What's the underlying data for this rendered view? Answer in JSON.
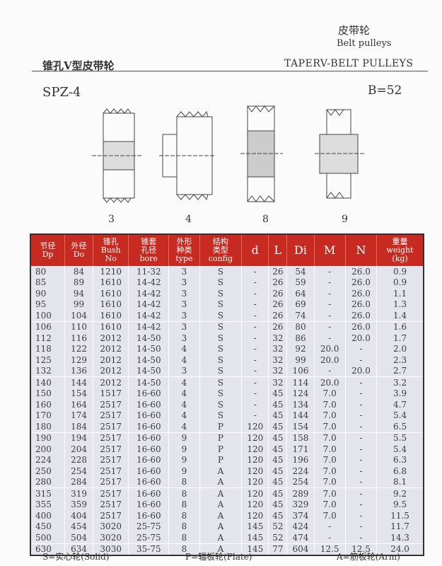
{
  "header": {
    "title_cn": "皮带轮",
    "title_en": "Belt pulleys",
    "section_cn": "锥孔V型皮带轮",
    "section_en": "TAPERV-BELT PULLEYS",
    "model": "SPZ-4",
    "b_value": "B=52"
  },
  "drawings": [
    {
      "label": "3"
    },
    {
      "label": "4"
    },
    {
      "label": "8"
    },
    {
      "label": "9"
    }
  ],
  "table": {
    "headers": [
      [
        "节径",
        "Dp"
      ],
      [
        "外径",
        "Do"
      ],
      [
        "锥孔",
        "Bush",
        "No"
      ],
      [
        "锥套",
        "孔径",
        "bore"
      ],
      [
        "外形",
        "种类",
        "type"
      ],
      [
        "结构",
        "类型",
        "config"
      ],
      [
        "d"
      ],
      [
        "L"
      ],
      [
        "Di"
      ],
      [
        "M"
      ],
      [
        "N"
      ],
      [
        "重量",
        "weight",
        "(kg)"
      ]
    ],
    "rows": [
      [
        "80",
        "84",
        "1210",
        "11-32",
        "3",
        "S",
        "-",
        "26",
        "54",
        "-",
        "26.0",
        "0.9"
      ],
      [
        "85",
        "89",
        "1610",
        "14-42",
        "3",
        "S",
        "-",
        "26",
        "59",
        "-",
        "26.0",
        "0.9"
      ],
      [
        "90",
        "94",
        "1610",
        "14-42",
        "3",
        "S",
        "-",
        "26",
        "64",
        "-",
        "26.0",
        "1.1"
      ],
      [
        "95",
        "99",
        "1610",
        "14-42",
        "3",
        "S",
        "-",
        "26",
        "69",
        "-",
        "26.0",
        "1.3"
      ],
      [
        "100",
        "104",
        "1610",
        "14-42",
        "3",
        "S",
        "-",
        "26",
        "74",
        "-",
        "26.0",
        "1.4"
      ],
      [
        "106",
        "110",
        "1610",
        "14-42",
        "3",
        "S",
        "-",
        "26",
        "80",
        "-",
        "26.0",
        "1.6"
      ],
      [
        "112",
        "116",
        "2012",
        "14-50",
        "3",
        "S",
        "-",
        "32",
        "86",
        "-",
        "20.0",
        "1.7"
      ],
      [
        "118",
        "122",
        "2012",
        "14-50",
        "4",
        "S",
        "-",
        "32",
        "92",
        "20.0",
        "-",
        "2.0"
      ],
      [
        "125",
        "129",
        "2012",
        "14-50",
        "4",
        "S",
        "-",
        "32",
        "99",
        "20.0",
        "-",
        "2.3"
      ],
      [
        "132",
        "136",
        "2012",
        "14-50",
        "3",
        "S",
        "-",
        "32",
        "106",
        "-",
        "20.0",
        "2.7"
      ],
      [
        "140",
        "144",
        "2012",
        "14-50",
        "4",
        "S",
        "-",
        "32",
        "114",
        "20.0",
        "-",
        "3.2"
      ],
      [
        "150",
        "154",
        "1517",
        "16-60",
        "4",
        "S",
        "-",
        "45",
        "124",
        "7.0",
        "-",
        "3.9"
      ],
      [
        "160",
        "164",
        "2517",
        "16-60",
        "4",
        "S",
        "-",
        "45",
        "134",
        "7.0",
        "-",
        "4.7"
      ],
      [
        "170",
        "174",
        "2517",
        "16-60",
        "4",
        "S",
        "-",
        "45",
        "144",
        "7.0",
        "-",
        "5.4"
      ],
      [
        "180",
        "184",
        "2517",
        "16-60",
        "4",
        "P",
        "120",
        "45",
        "154",
        "7.0",
        "-",
        "6.5"
      ],
      [
        "190",
        "194",
        "2517",
        "16-60",
        "9",
        "P",
        "120",
        "45",
        "158",
        "7.0",
        "-",
        "5.5"
      ],
      [
        "200",
        "204",
        "2517",
        "16-60",
        "9",
        "P",
        "120",
        "45",
        "171",
        "7.0",
        "-",
        "5.4"
      ],
      [
        "224",
        "228",
        "2517",
        "16-60",
        "9",
        "P",
        "120",
        "45",
        "196",
        "7.0",
        "-",
        "6.3"
      ],
      [
        "250",
        "254",
        "2517",
        "16-60",
        "9",
        "A",
        "120",
        "45",
        "224",
        "7.0",
        "-",
        "6.8"
      ],
      [
        "280",
        "284",
        "2517",
        "16-60",
        "8",
        "A",
        "120",
        "45",
        "254",
        "7.0",
        "-",
        "8.1"
      ],
      [
        "315",
        "319",
        "2517",
        "16-60",
        "8",
        "A",
        "120",
        "45",
        "289",
        "7.0",
        "-",
        "9.2"
      ],
      [
        "355",
        "359",
        "2517",
        "16-60",
        "8",
        "A",
        "120",
        "45",
        "329",
        "7.0",
        "-",
        "9.5"
      ],
      [
        "400",
        "404",
        "2517",
        "16-60",
        "8",
        "A",
        "120",
        "45",
        "374",
        "7.0",
        "-",
        "11.5"
      ],
      [
        "450",
        "454",
        "3020",
        "25-75",
        "8",
        "A",
        "145",
        "52",
        "424",
        "-",
        "-",
        "11.7"
      ],
      [
        "500",
        "504",
        "3020",
        "25-75",
        "8",
        "A",
        "145",
        "52",
        "474",
        "-",
        "-",
        "14.3"
      ],
      [
        "630",
        "634",
        "3030",
        "35-75",
        "8",
        "A",
        "145",
        "77",
        "604",
        "12.5",
        "12.5",
        "24.0"
      ]
    ]
  },
  "legend": {
    "solid": "S=实心轮(Solid)",
    "plate": "P=辐板轮(Plate)",
    "arm": "A=筋板轮(Arm)"
  },
  "colors": {
    "header_bg": "#c62a20",
    "row_bg": "#e4e4ec"
  }
}
